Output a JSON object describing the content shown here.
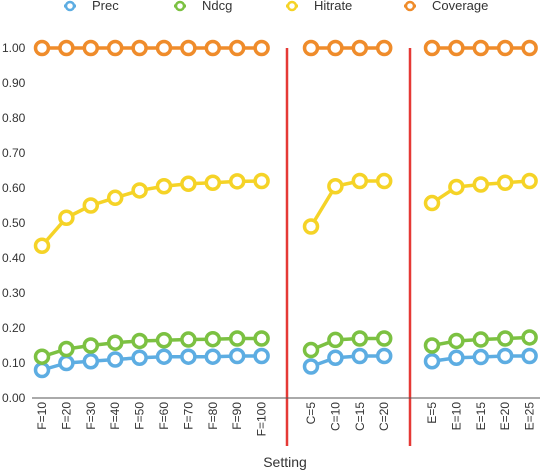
{
  "chart_data": {
    "type": "line",
    "xlabel": "Setting",
    "ylabel": "",
    "ylim": [
      0,
      1
    ],
    "yticks": [
      "0.00",
      "0.10",
      "0.20",
      "0.30",
      "0.40",
      "0.50",
      "0.60",
      "0.70",
      "0.80",
      "0.90",
      "1.00"
    ],
    "grid": false,
    "legend_position": "top",
    "groups": [
      {
        "categories": [
          "F=10",
          "F=20",
          "F=30",
          "F=40",
          "F=50",
          "F=60",
          "F=70",
          "F=80",
          "F=90",
          "F=100"
        ],
        "series": [
          {
            "name": "Prec",
            "values": [
              0.08,
              0.1,
              0.105,
              0.11,
              0.115,
              0.118,
              0.118,
              0.118,
              0.12,
              0.12
            ]
          },
          {
            "name": "Ndcg",
            "values": [
              0.118,
              0.14,
              0.15,
              0.158,
              0.163,
              0.165,
              0.167,
              0.168,
              0.17,
              0.17
            ]
          },
          {
            "name": "Hitrate",
            "values": [
              0.435,
              0.515,
              0.55,
              0.572,
              0.593,
              0.605,
              0.612,
              0.615,
              0.619,
              0.62
            ]
          },
          {
            "name": "Coverage",
            "values": [
              1.0,
              1.0,
              1.0,
              1.0,
              1.0,
              1.0,
              1.0,
              1.0,
              1.0,
              1.0
            ]
          }
        ]
      },
      {
        "categories": [
          "C=5",
          "C=10",
          "C=15",
          "C=20"
        ],
        "series": [
          {
            "name": "Prec",
            "values": [
              0.09,
              0.115,
              0.12,
              0.12
            ]
          },
          {
            "name": "Ndcg",
            "values": [
              0.137,
              0.166,
              0.17,
              0.17
            ]
          },
          {
            "name": "Hitrate",
            "values": [
              0.49,
              0.605,
              0.62,
              0.62
            ]
          },
          {
            "name": "Coverage",
            "values": [
              1.0,
              1.0,
              1.0,
              1.0
            ]
          }
        ]
      },
      {
        "categories": [
          "E=5",
          "E=10",
          "E=15",
          "E=20",
          "E=25"
        ],
        "series": [
          {
            "name": "Prec",
            "values": [
              0.105,
              0.115,
              0.117,
              0.12,
              0.12
            ]
          },
          {
            "name": "Ndcg",
            "values": [
              0.15,
              0.163,
              0.167,
              0.17,
              0.173
            ]
          },
          {
            "name": "Hitrate",
            "values": [
              0.557,
              0.603,
              0.61,
              0.615,
              0.62
            ]
          },
          {
            "name": "Coverage",
            "values": [
              1.0,
              1.0,
              1.0,
              1.0,
              1.0
            ]
          }
        ]
      }
    ]
  },
  "colors": {
    "Prec": "#5dade2",
    "Ndcg": "#7cc142",
    "Hitrate": "#f5d327",
    "Coverage": "#ef8c2b",
    "separator": "#e53935",
    "axis": "#555555"
  }
}
